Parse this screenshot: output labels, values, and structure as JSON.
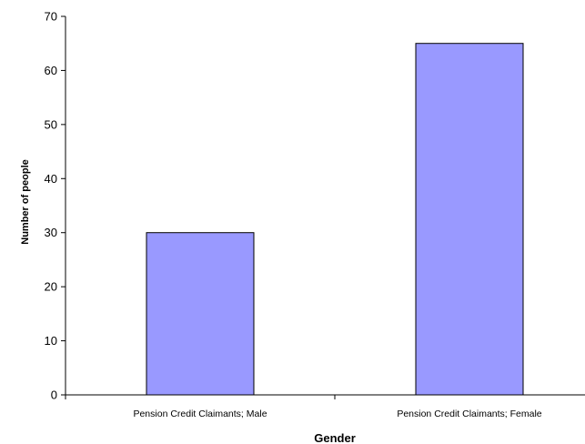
{
  "chart_data": {
    "type": "bar",
    "categories": [
      "Pension Credit Claimants; Male",
      "Pension Credit Claimants; Female"
    ],
    "values": [
      30,
      65
    ],
    "title": "",
    "xlabel": "Gender",
    "ylabel": "Number of people",
    "ylim": [
      0,
      70
    ],
    "yticks": [
      0,
      10,
      20,
      30,
      40,
      50,
      60,
      70
    ],
    "grid": false,
    "legend": "none",
    "bar_color": "#9999ff",
    "bar_edge_color": "#000000"
  }
}
